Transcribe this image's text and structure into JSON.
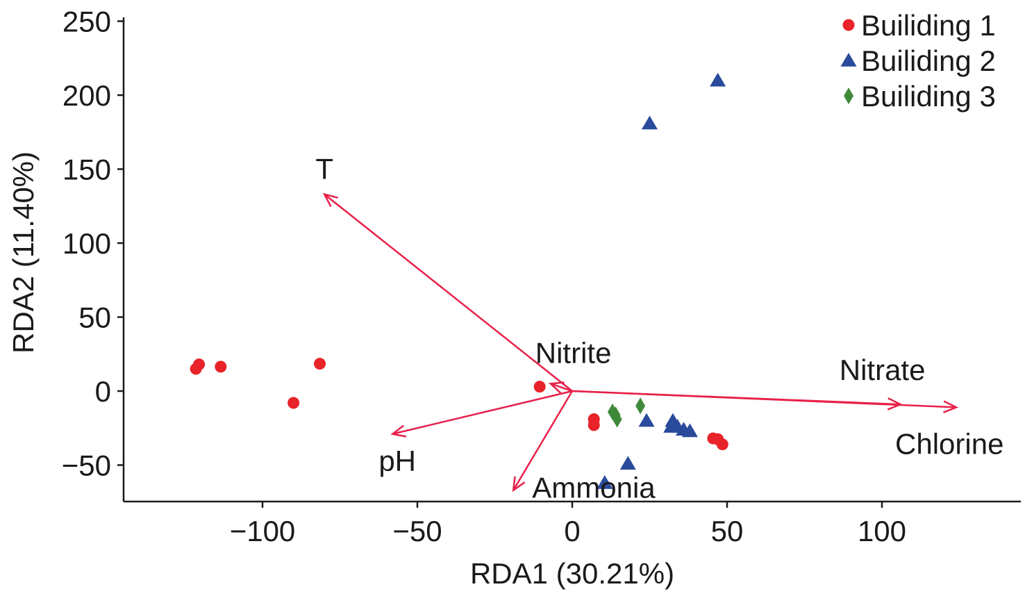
{
  "chart_data": {
    "type": "scatter",
    "title": "",
    "xlabel": "RDA1 (30.21%)",
    "ylabel": "RDA2 (11.40%)",
    "xlim": [
      -145,
      145
    ],
    "ylim": [
      -75,
      252
    ],
    "xticks": [
      -100,
      -50,
      0,
      50,
      100
    ],
    "yticks": [
      -50,
      0,
      50,
      100,
      150,
      200,
      250
    ],
    "xtick_labels": [
      "−100",
      "−50",
      "0",
      "50",
      "100"
    ],
    "ytick_labels": [
      "−50",
      "0",
      "50",
      "100",
      "150",
      "200",
      "250"
    ],
    "grid": false,
    "legend_position": "top-right",
    "series": [
      {
        "name": "Builiding 1",
        "marker": "circle",
        "color": "#e8232a",
        "points": [
          {
            "x": -121.5,
            "y": 15
          },
          {
            "x": -120.5,
            "y": 18
          },
          {
            "x": -113.5,
            "y": 16.5
          },
          {
            "x": -90,
            "y": -8
          },
          {
            "x": -81.5,
            "y": 18.5
          },
          {
            "x": -10.5,
            "y": 3
          },
          {
            "x": 7,
            "y": -19
          },
          {
            "x": 7,
            "y": -23
          },
          {
            "x": 45.5,
            "y": -32
          },
          {
            "x": 47,
            "y": -32.5
          },
          {
            "x": 48.5,
            "y": -36
          }
        ]
      },
      {
        "name": "Builiding 2",
        "marker": "triangle",
        "color": "#2a4b9b",
        "points": [
          {
            "x": 47,
            "y": 210
          },
          {
            "x": 25,
            "y": 181
          },
          {
            "x": 24,
            "y": -20
          },
          {
            "x": 32.5,
            "y": -20
          },
          {
            "x": 32,
            "y": -24
          },
          {
            "x": 34,
            "y": -24
          },
          {
            "x": 36,
            "y": -26
          },
          {
            "x": 38,
            "y": -27
          },
          {
            "x": 18,
            "y": -49
          },
          {
            "x": 10.5,
            "y": -62
          }
        ]
      },
      {
        "name": "Builiding 3",
        "marker": "diamond",
        "color": "#3f8a3a",
        "points": [
          {
            "x": 13,
            "y": -14
          },
          {
            "x": 14,
            "y": -16
          },
          {
            "x": 14.5,
            "y": -19
          },
          {
            "x": 22,
            "y": -10
          }
        ]
      }
    ],
    "vectors": [
      {
        "label": "T",
        "x": -80,
        "y": 133
      },
      {
        "label": "Nitrite",
        "x": -7,
        "y": 5
      },
      {
        "label": "Nitrate",
        "x": 106,
        "y": -9
      },
      {
        "label": "Chlorine",
        "x": 124,
        "y": -11
      },
      {
        "label": "pH",
        "x": -58,
        "y": -29
      },
      {
        "label": "Ammonia",
        "x": -19,
        "y": -67
      }
    ],
    "vector_color": "#e8204a"
  }
}
